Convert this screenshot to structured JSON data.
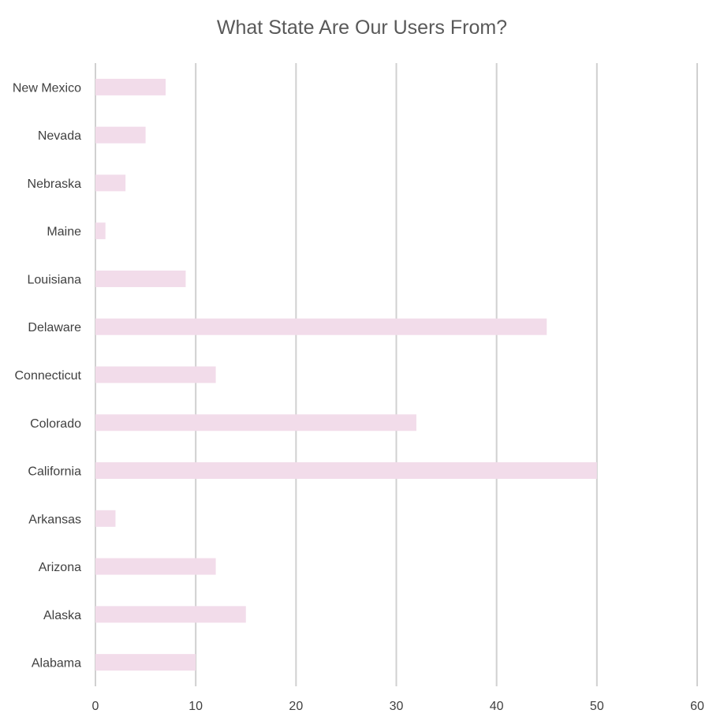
{
  "chart_data": {
    "type": "bar",
    "orientation": "horizontal",
    "title": "What State Are Our Users From?",
    "xlabel": "",
    "ylabel": "",
    "categories": [
      "Alabama",
      "Alaska",
      "Arizona",
      "Arkansas",
      "California",
      "Colorado",
      "Connecticut",
      "Delaware",
      "Louisiana",
      "Maine",
      "Nebraska",
      "Nevada",
      "New Mexico"
    ],
    "values": [
      10,
      15,
      12,
      2,
      50,
      32,
      12,
      45,
      9,
      1,
      3,
      5,
      7
    ],
    "xlim": [
      0,
      60
    ],
    "xticks": [
      0,
      10,
      20,
      30,
      40,
      50,
      60
    ],
    "grid": true,
    "legend": "none",
    "bar_color": "#f2dcea",
    "grid_color": "#d0d0d0"
  }
}
